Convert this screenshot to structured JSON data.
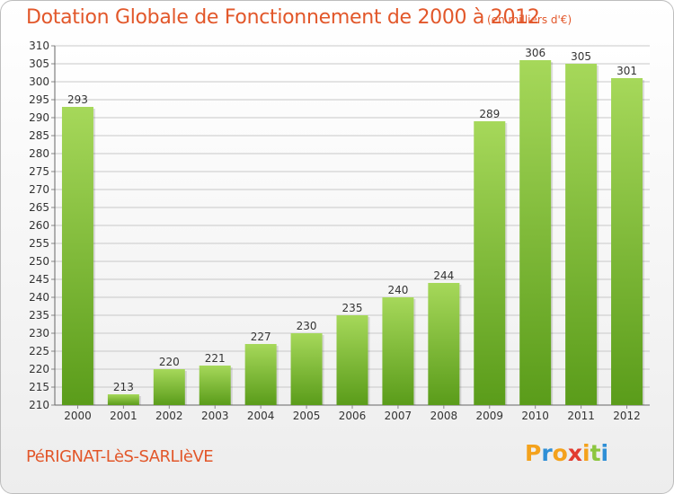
{
  "header": {
    "title": "Dotation Globale de Fonctionnement de 2000 à 2012",
    "subtitle": "(en milliers d'€)"
  },
  "footer": {
    "commune": "PéRIGNAT-LèS-SARLIèVE",
    "logo_letters": [
      "P",
      "r",
      "o",
      "x",
      "i",
      "t",
      "i"
    ],
    "logo_colors": [
      "#f4a21c",
      "#2f8fd6",
      "#f4a21c",
      "#e23b30",
      "#f4a21c",
      "#8cc63f",
      "#2f8fd6"
    ]
  },
  "colors": {
    "accent": "#e2572a",
    "bar_light": "#a6d85a",
    "bar_dark": "#5a9c1a"
  },
  "chart_data": {
    "type": "bar",
    "title": "Dotation Globale de Fonctionnement de 2000 à 2012",
    "subtitle": "(en milliers d'€)",
    "categories": [
      "2000",
      "2001",
      "2002",
      "2003",
      "2004",
      "2005",
      "2006",
      "2007",
      "2008",
      "2009",
      "2010",
      "2011",
      "2012"
    ],
    "values": [
      293,
      213,
      220,
      221,
      227,
      230,
      235,
      240,
      244,
      289,
      306,
      305,
      301
    ],
    "ylim": [
      210,
      310
    ],
    "yticks": [
      210,
      215,
      220,
      225,
      230,
      235,
      240,
      245,
      250,
      255,
      260,
      265,
      270,
      275,
      280,
      285,
      290,
      295,
      300,
      305,
      310
    ],
    "grid": true,
    "xlabel": "",
    "ylabel": ""
  }
}
